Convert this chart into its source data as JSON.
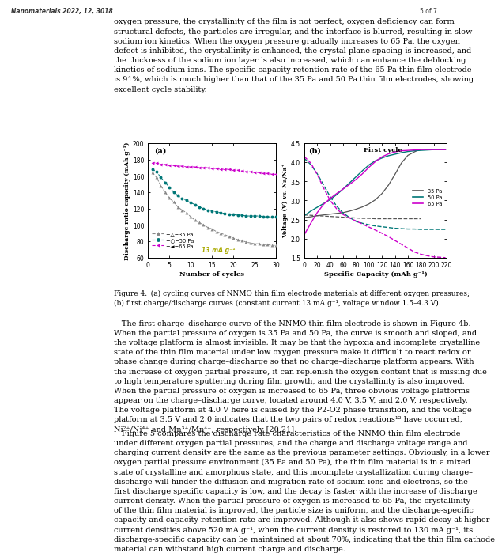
{
  "panel_a": {
    "title": "(a)",
    "xlabel": "Number of cycles",
    "ylabel": "Discharge ratio capacity (mAh g⁻¹)",
    "ylim": [
      60,
      200
    ],
    "xlim": [
      0,
      30
    ],
    "xticks": [
      0,
      5,
      10,
      15,
      20,
      25,
      30
    ],
    "yticks": [
      60,
      80,
      100,
      120,
      140,
      160,
      180,
      200
    ],
    "annotation": "13 mA g⁻¹",
    "annotation_color": "#aaaa00",
    "series": {
      "35Pa": {
        "color": "#888888",
        "marker": "^",
        "label": "-△-35 Pa",
        "x": [
          1,
          2,
          3,
          4,
          5,
          6,
          7,
          8,
          9,
          10,
          11,
          12,
          13,
          14,
          15,
          16,
          17,
          18,
          19,
          20,
          21,
          22,
          23,
          24,
          25,
          26,
          27,
          28,
          29,
          30
        ],
        "y": [
          164,
          158,
          148,
          140,
          133,
          128,
          122,
          118,
          115,
          110,
          106,
          103,
          100,
          97,
          95,
          92,
          90,
          88,
          86,
          84,
          82,
          81,
          79,
          78,
          77,
          77,
          76,
          76,
          75,
          75
        ]
      },
      "50Pa": {
        "color": "#007777",
        "marker": "o",
        "label": "-○-50 Pa",
        "x": [
          1,
          2,
          3,
          4,
          5,
          6,
          7,
          8,
          9,
          10,
          11,
          12,
          13,
          14,
          15,
          16,
          17,
          18,
          19,
          20,
          21,
          22,
          23,
          24,
          25,
          26,
          27,
          28,
          29,
          30
        ],
        "y": [
          168,
          165,
          158,
          152,
          146,
          140,
          136,
          132,
          130,
          127,
          125,
          122,
          120,
          118,
          117,
          116,
          115,
          114,
          113,
          113,
          112,
          112,
          111,
          111,
          111,
          111,
          110,
          110,
          110,
          110
        ]
      },
      "65Pa": {
        "color": "#cc00cc",
        "marker": "<",
        "label": "-◄-65 Pa",
        "x": [
          1,
          2,
          3,
          4,
          5,
          6,
          7,
          8,
          9,
          10,
          11,
          12,
          13,
          14,
          15,
          16,
          17,
          18,
          19,
          20,
          21,
          22,
          23,
          24,
          25,
          26,
          27,
          28,
          29,
          30
        ],
        "y": [
          176,
          176,
          174,
          174,
          173,
          173,
          172,
          172,
          171,
          171,
          171,
          170,
          170,
          170,
          169,
          169,
          168,
          168,
          168,
          167,
          167,
          166,
          165,
          165,
          164,
          164,
          163,
          163,
          162,
          162
        ]
      }
    }
  },
  "panel_b": {
    "title": "(b)",
    "subtitle": "First cycle",
    "xlabel": "Specific Capacity (mAh g⁻¹)",
    "ylabel": "Voltage (V) vs. Na/Na⁺",
    "ylim": [
      1.5,
      4.5
    ],
    "xlim": [
      0,
      220
    ],
    "xticks": [
      0,
      20,
      40,
      60,
      80,
      100,
      120,
      140,
      160,
      180,
      200,
      220
    ],
    "yticks": [
      1.5,
      2.0,
      2.5,
      3.0,
      3.5,
      4.0,
      4.5
    ],
    "series": {
      "35Pa": {
        "color": "#555555",
        "label": "35 Pa",
        "charge_x": [
          0,
          10,
          20,
          30,
          40,
          50,
          60,
          70,
          80,
          90,
          100,
          110,
          120,
          130,
          140,
          150,
          160,
          170,
          175,
          180
        ],
        "charge_y": [
          2.55,
          2.57,
          2.6,
          2.62,
          2.64,
          2.66,
          2.68,
          2.72,
          2.77,
          2.83,
          2.91,
          3.02,
          3.18,
          3.4,
          3.68,
          3.98,
          4.18,
          4.27,
          4.31,
          4.33
        ],
        "discharge_x": [
          0,
          10,
          20,
          30,
          40,
          50,
          60,
          70,
          80,
          90,
          100,
          110,
          120,
          130,
          140,
          150,
          160,
          170,
          175,
          180
        ],
        "discharge_y": [
          2.62,
          2.61,
          2.6,
          2.59,
          2.58,
          2.57,
          2.56,
          2.55,
          2.54,
          2.53,
          2.53,
          2.52,
          2.52,
          2.52,
          2.52,
          2.52,
          2.52,
          2.52,
          2.52,
          2.52
        ]
      },
      "50Pa": {
        "color": "#007777",
        "label": "50 Pa",
        "charge_x": [
          0,
          10,
          20,
          30,
          40,
          50,
          60,
          70,
          80,
          90,
          100,
          110,
          120,
          130,
          140,
          150,
          160,
          170,
          180,
          190,
          200,
          210,
          218
        ],
        "charge_y": [
          2.6,
          2.72,
          2.82,
          2.92,
          3.02,
          3.15,
          3.3,
          3.46,
          3.62,
          3.78,
          3.93,
          4.04,
          4.11,
          4.17,
          4.21,
          4.25,
          4.28,
          4.3,
          4.31,
          4.32,
          4.33,
          4.33,
          4.33
        ],
        "discharge_x": [
          0,
          10,
          20,
          30,
          40,
          50,
          60,
          70,
          80,
          90,
          100,
          110,
          120,
          130,
          140,
          150,
          160,
          170,
          180,
          190,
          200,
          210,
          218
        ],
        "discharge_y": [
          4.1,
          3.94,
          3.7,
          3.4,
          3.1,
          2.85,
          2.67,
          2.55,
          2.45,
          2.4,
          2.36,
          2.33,
          2.31,
          2.29,
          2.27,
          2.26,
          2.25,
          2.25,
          2.24,
          2.24,
          2.24,
          2.24,
          2.24
        ]
      },
      "65Pa": {
        "color": "#cc00cc",
        "label": "65 Pa",
        "charge_x": [
          0,
          10,
          20,
          30,
          40,
          50,
          60,
          70,
          80,
          90,
          100,
          110,
          120,
          130,
          140,
          150,
          160,
          170,
          180,
          190,
          200,
          210,
          218
        ],
        "charge_y": [
          2.1,
          2.4,
          2.68,
          2.9,
          3.05,
          3.18,
          3.3,
          3.42,
          3.55,
          3.7,
          3.87,
          4.02,
          4.14,
          4.22,
          4.27,
          4.3,
          4.31,
          4.32,
          4.33,
          4.33,
          4.33,
          4.33,
          4.33
        ],
        "discharge_x": [
          0,
          10,
          20,
          30,
          40,
          50,
          60,
          70,
          80,
          90,
          100,
          110,
          120,
          130,
          140,
          150,
          160,
          170,
          180,
          190,
          200,
          210,
          218
        ],
        "discharge_y": [
          4.15,
          3.98,
          3.68,
          3.32,
          3.0,
          2.78,
          2.63,
          2.54,
          2.46,
          2.38,
          2.3,
          2.22,
          2.14,
          2.05,
          1.95,
          1.85,
          1.75,
          1.65,
          1.59,
          1.55,
          1.52,
          1.51,
          1.5
        ]
      }
    }
  },
  "page": {
    "header_left": "Nanomaterials 2022, 12, 3018",
    "header_right": "5 of 7",
    "para1": "oxygen pressure, the crystallinity of the film is not perfect, oxygen deficiency can form\nstructural defects, the particles are irregular, and the interface is blurred, resulting in slow\nsodium ion kinetics. When the oxygen pressure gradually increases to 65 Pa, the oxygen\ndefect is inhibited, the crystallinity is enhanced, the crystal plane spacing is increased, and\nthe thickness of the sodium ion layer is also increased, which can enhance the deblocking\nkinetics of sodium ions. The specific capacity retention rate of the 65 Pa thin film electrode\nis 91%, which is much higher than that of the 35 Pa and 50 Pa thin film electrodes, showing\nexcellent cycle stability.",
    "caption": "Figure 4. (a) cycling curves of NNMO thin film electrode materials at different oxygen pressures;\n(b) first charge/discharge curves (constant current 13 mA g⁻¹, voltage window 1.5–4.3 V).",
    "para2": " The first charge–discharge curve of the NNMO thin film electrode is shown in Figure 4b.\nWhen the partial pressure of oxygen is 35 Pa and 50 Pa, the curve is smooth and sloped, and\nthe voltage platform is almost invisible. It may be that the hypoxia and incomplete crystalline\nstate of the thin film material under low oxygen pressure make it difficult to react redox or\nphase change during charge–discharge so that no charge–discharge platform appears. With\nthe increase of oxygen partial pressure, it can replenish the oxygen content that is missing due\nto high temperature sputtering during film growth, and the crystallinity is also improved.\nWhen the partial pressure of oxygen is increased to 65 Pa, three obvious voltage platforms\nappear on the charge–discharge curve, located around 4.0 V, 3.5 V, and 2.0 V, respectively.\nThe voltage platform at 4.0 V here is caused by the P2-O2 phase transition, and the voltage\nplatform at 3.5 V and 2.0 indicates that the two pairs of redox reactions¹² have occurred,\nNi²⁺/Ni⁴⁺ and Mn³⁺/Mn⁴⁺, respectively [20,21].",
    "para3": " Figure 5 compares the discharge rate characteristics of the NNMO thin film electrode\nunder different oxygen partial pressures, and the charge and discharge voltage range and\ncharging current density are the same as the previous parameter settings. Obviously, in a lower\noxygen partial pressure environment (35 Pa and 50 Pa), the thin film material is in a mixed\nstate of crystalline and amorphous state, and this incomplete crystallization during charge–\ndischarge will hinder the diffusion and migration rate of sodium ions and electrons, so the\nfirst discharge specific capacity is low, and the decay is faster with the increase of discharge\ncurrent density. When the partial pressure of oxygen is increased to 65 Pa, the crystallinity\nof the thin film material is improved, the particle size is uniform, and the discharge-specific\ncapacity and capacity retention rate are improved. Although it also shows rapid decay at higher\ncurrent densities above 520 mA g⁻¹, when the current density is restored to 130 mA g⁻¹, its\ndischarge-specific capacity can be maintained at about 70%, indicating that the thin film cathode\nmaterial can withstand high current charge and discharge."
  }
}
